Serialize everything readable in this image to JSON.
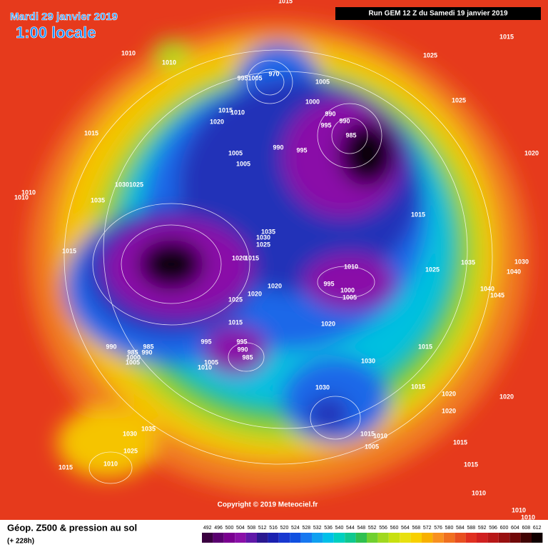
{
  "header": {
    "date": "Mardi 29 janvier 2019",
    "time": "1:00 locale",
    "run": "Run GEM 12 Z du Samedi 19 janvier 2019"
  },
  "map": {
    "copyright": "Copyright © 2019 Meteociel.fr",
    "pressure_labels": [
      "1015",
      "1010",
      "1010",
      "1025",
      "1015",
      "9951005",
      "970",
      "1005",
      "1000",
      "990",
      "990",
      "995",
      "985",
      "990",
      "995",
      "1025",
      "1015",
      "1010",
      "1020",
      "1015",
      "1005",
      "1005",
      "1020",
      "10301025",
      "1010",
      "1010",
      "1035",
      "1015",
      "1035",
      "1030",
      "1025",
      "1015",
      "1020",
      "1015",
      "1035",
      "1030",
      "1025",
      "1040",
      "1010",
      "995",
      "1000",
      "1005",
      "1040",
      "1045",
      "1020",
      "1025",
      "1020",
      "1015",
      "1020",
      "995",
      "995",
      "990",
      "985",
      "985",
      "990",
      "985",
      "990",
      "1000",
      "1005",
      "1015",
      "1030",
      "1010",
      "1005",
      "1030",
      "1015",
      "1020",
      "1020",
      "1020",
      "1030",
      "1035",
      "1015",
      "1010",
      "1005",
      "1015",
      "1025",
      "1010",
      "1015",
      "1015",
      "1010",
      "1010",
      "1010"
    ]
  },
  "footer": {
    "title": "Géop. Z500 & pression au sol",
    "lead": "(+ 228h)",
    "scale": {
      "labels": [
        "492",
        "496",
        "500",
        "504",
        "508",
        "512",
        "516",
        "520",
        "524",
        "528",
        "532",
        "536",
        "540",
        "544",
        "548",
        "552",
        "556",
        "560",
        "564",
        "568",
        "572",
        "576",
        "580",
        "584",
        "588",
        "592",
        "596",
        "600",
        "604",
        "608",
        "612"
      ],
      "colors": [
        "#3a0040",
        "#5a0070",
        "#7a0090",
        "#8a10a8",
        "#6018a8",
        "#2a1890",
        "#1a20b0",
        "#1838d0",
        "#1050e0",
        "#1878f0",
        "#10a0f0",
        "#00c0e8",
        "#00d0c0",
        "#10c890",
        "#30c050",
        "#70d030",
        "#a0d820",
        "#c8e010",
        "#e8e010",
        "#f8d000",
        "#f8b000",
        "#f89020",
        "#f07020",
        "#e85020",
        "#e03020",
        "#d02020",
        "#b81818",
        "#981010",
        "#700808",
        "#400404",
        "#100000"
      ]
    }
  }
}
